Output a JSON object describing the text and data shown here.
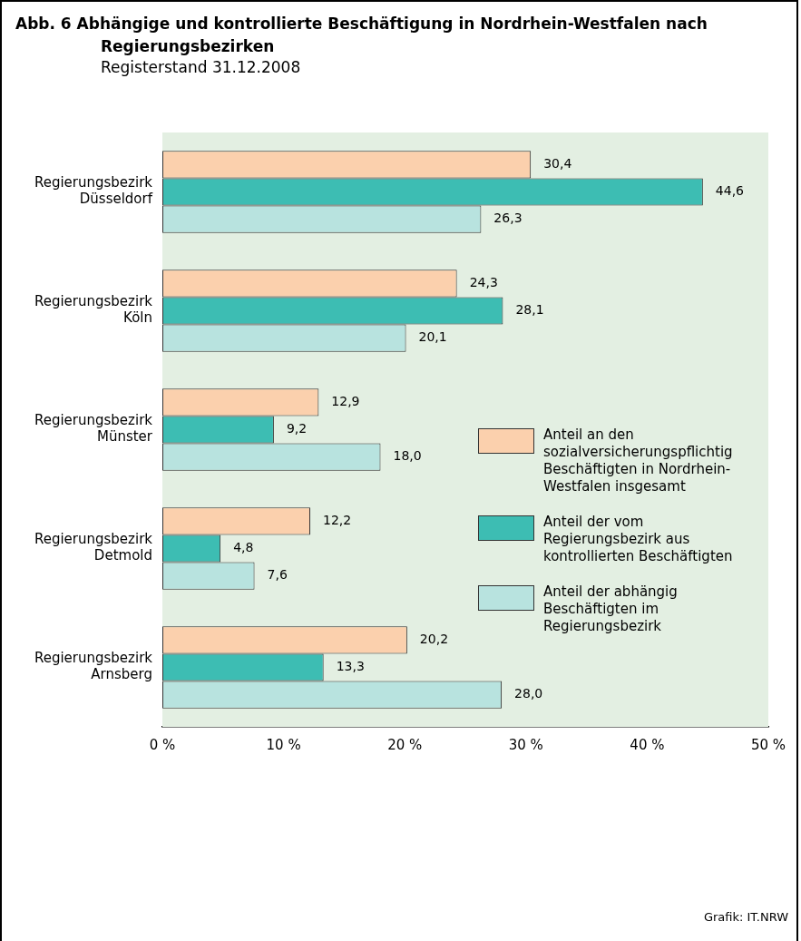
{
  "chart_data": {
    "type": "bar",
    "orientation": "horizontal",
    "title": "Abb. 6 Abhängige und kontrollierte Beschäftigung in Nordrhein-Westfalen nach Regierungsbezirken",
    "subtitle": "Registerstand 31.12.2008",
    "categories": [
      "Regierungsbezirk Düsseldorf",
      "Regierungsbezirk Köln",
      "Regierungsbezirk Münster",
      "Regierungsbezirk Detmold",
      "Regierungsbezirk Arnsberg"
    ],
    "series": [
      {
        "name": "Anteil an den sozialversicherungspflichtig Beschäftigten in Nordrhein-Westfalen insgesamt",
        "color": "#fbd0ad",
        "values": [
          30.4,
          24.3,
          12.9,
          12.2,
          20.2
        ],
        "value_labels": [
          "30,4",
          "24,3",
          "12,9",
          "12,2",
          "20,2"
        ]
      },
      {
        "name": "Anteil der vom Regierungsbezirk aus kontrollierten Beschäftigten",
        "color": "#3dbdb3",
        "values": [
          44.6,
          28.1,
          9.2,
          4.8,
          13.3
        ],
        "value_labels": [
          "44,6",
          "28,1",
          "9,2",
          "4,8",
          "13,3"
        ]
      },
      {
        "name": "Anteil der abhängig Beschäftigten im Regierungsbezirk",
        "color": "#b8e3df",
        "values": [
          26.3,
          20.1,
          18.0,
          7.6,
          28.0
        ],
        "value_labels": [
          "26,3",
          "20,1",
          "18,0",
          "7,6",
          "28,0"
        ]
      }
    ],
    "xlim": [
      0,
      50
    ],
    "xticks": [
      {
        "value": 0,
        "label": "0 %"
      },
      {
        "value": 10,
        "label": "10 %"
      },
      {
        "value": 20,
        "label": "20 %"
      },
      {
        "value": 30,
        "label": "30 %"
      },
      {
        "value": 40,
        "label": "40 %"
      },
      {
        "value": 50,
        "label": "50 %"
      }
    ],
    "legend": "right",
    "annotations": [
      "Grafik: IT.NRW"
    ]
  }
}
